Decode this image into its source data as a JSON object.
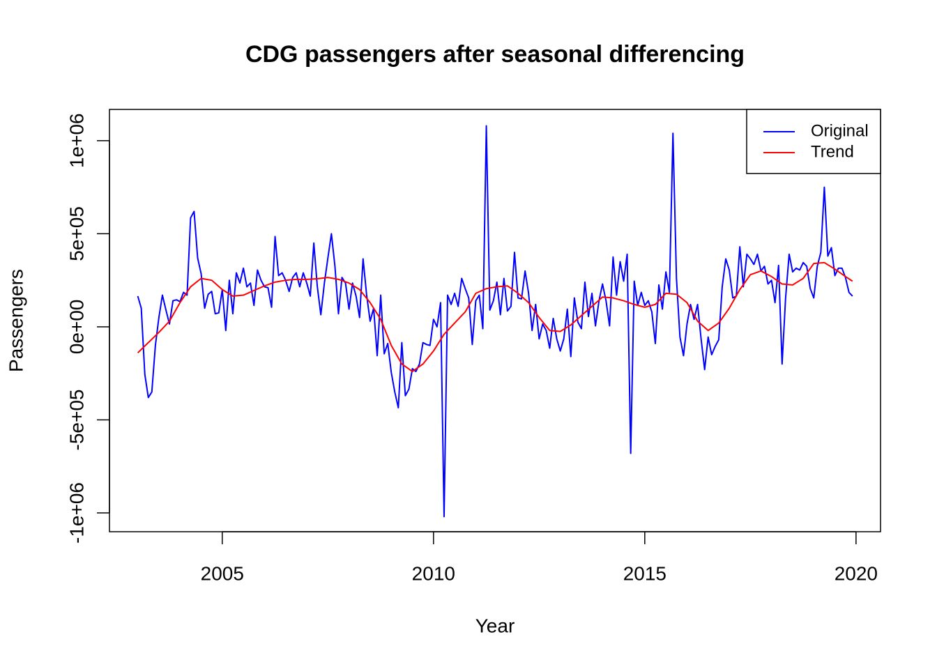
{
  "chart_data": {
    "type": "line",
    "title": "CDG passengers after seasonal differencing",
    "xlabel": "Year",
    "ylabel": "Passengers",
    "x": [
      2003.0,
      2003.083,
      2003.167,
      2003.25,
      2003.333,
      2003.417,
      2003.5,
      2003.583,
      2003.667,
      2003.75,
      2003.833,
      2003.917,
      2004.0,
      2004.083,
      2004.167,
      2004.25,
      2004.333,
      2004.417,
      2004.5,
      2004.583,
      2004.667,
      2004.75,
      2004.833,
      2004.917,
      2005.0,
      2005.083,
      2005.167,
      2005.25,
      2005.333,
      2005.417,
      2005.5,
      2005.583,
      2005.667,
      2005.75,
      2005.833,
      2005.917,
      2006.0,
      2006.083,
      2006.167,
      2006.25,
      2006.333,
      2006.417,
      2006.5,
      2006.583,
      2006.667,
      2006.75,
      2006.833,
      2006.917,
      2007.0,
      2007.083,
      2007.167,
      2007.25,
      2007.333,
      2007.417,
      2007.5,
      2007.583,
      2007.667,
      2007.75,
      2007.833,
      2007.917,
      2008.0,
      2008.083,
      2008.167,
      2008.25,
      2008.333,
      2008.417,
      2008.5,
      2008.583,
      2008.667,
      2008.75,
      2008.833,
      2008.917,
      2009.0,
      2009.083,
      2009.167,
      2009.25,
      2009.333,
      2009.417,
      2009.5,
      2009.583,
      2009.667,
      2009.75,
      2009.833,
      2009.917,
      2010.0,
      2010.083,
      2010.167,
      2010.25,
      2010.333,
      2010.417,
      2010.5,
      2010.583,
      2010.667,
      2010.75,
      2010.833,
      2010.917,
      2011.0,
      2011.083,
      2011.167,
      2011.25,
      2011.333,
      2011.417,
      2011.5,
      2011.583,
      2011.667,
      2011.75,
      2011.833,
      2011.917,
      2012.0,
      2012.083,
      2012.167,
      2012.25,
      2012.333,
      2012.417,
      2012.5,
      2012.583,
      2012.667,
      2012.75,
      2012.833,
      2012.917,
      2013.0,
      2013.083,
      2013.167,
      2013.25,
      2013.333,
      2013.417,
      2013.5,
      2013.583,
      2013.667,
      2013.75,
      2013.833,
      2013.917,
      2014.0,
      2014.083,
      2014.167,
      2014.25,
      2014.333,
      2014.417,
      2014.5,
      2014.583,
      2014.667,
      2014.75,
      2014.833,
      2014.917,
      2015.0,
      2015.083,
      2015.167,
      2015.25,
      2015.333,
      2015.417,
      2015.5,
      2015.583,
      2015.667,
      2015.75,
      2015.833,
      2015.917,
      2016.0,
      2016.083,
      2016.167,
      2016.25,
      2016.333,
      2016.417,
      2016.5,
      2016.583,
      2016.667,
      2016.75,
      2016.833,
      2016.917,
      2017.0,
      2017.083,
      2017.167,
      2017.25,
      2017.333,
      2017.417,
      2017.5,
      2017.583,
      2017.667,
      2017.75,
      2017.833,
      2017.917,
      2018.0,
      2018.083,
      2018.167,
      2018.25,
      2018.333,
      2018.417,
      2018.5,
      2018.583,
      2018.667,
      2018.75,
      2018.833,
      2018.917,
      2019.0,
      2019.083,
      2019.167,
      2019.25,
      2019.333,
      2019.417,
      2019.5,
      2019.583,
      2019.667,
      2019.75,
      2019.833,
      2019.917
    ],
    "series": [
      {
        "name": "Original",
        "color": "#0000ff",
        "values": [
          165000,
          100000,
          -255000,
          -380000,
          -350000,
          -100000,
          50000,
          170000,
          90000,
          15000,
          140000,
          145000,
          135000,
          185000,
          170000,
          585000,
          620000,
          370000,
          285000,
          100000,
          175000,
          190000,
          70000,
          75000,
          200000,
          -20000,
          250000,
          70000,
          290000,
          235000,
          315000,
          215000,
          235000,
          115000,
          305000,
          250000,
          215000,
          210000,
          105000,
          485000,
          275000,
          290000,
          250000,
          190000,
          265000,
          290000,
          215000,
          290000,
          235000,
          165000,
          450000,
          215000,
          65000,
          235000,
          370000,
          500000,
          325000,
          70000,
          265000,
          235000,
          95000,
          235000,
          165000,
          50000,
          365000,
          170000,
          30000,
          100000,
          -155000,
          170000,
          -145000,
          -90000,
          -245000,
          -350000,
          -435000,
          -85000,
          -370000,
          -335000,
          -225000,
          -240000,
          -200000,
          -85000,
          -95000,
          -100000,
          40000,
          0,
          130000,
          -1020000,
          170000,
          120000,
          180000,
          110000,
          260000,
          205000,
          155000,
          -95000,
          140000,
          170000,
          -10000,
          1080000,
          90000,
          140000,
          240000,
          65000,
          260000,
          85000,
          110000,
          400000,
          155000,
          150000,
          300000,
          180000,
          -20000,
          120000,
          -65000,
          15000,
          -20000,
          -115000,
          45000,
          -65000,
          -130000,
          -65000,
          95000,
          -160000,
          155000,
          25000,
          -10000,
          240000,
          55000,
          180000,
          5000,
          140000,
          230000,
          140000,
          5000,
          375000,
          170000,
          350000,
          245000,
          390000,
          -680000,
          245000,
          115000,
          185000,
          115000,
          140000,
          80000,
          -90000,
          225000,
          95000,
          295000,
          185000,
          1040000,
          260000,
          -55000,
          -155000,
          15000,
          120000,
          40000,
          120000,
          -65000,
          -230000,
          -55000,
          -150000,
          -105000,
          -70000,
          215000,
          365000,
          305000,
          155000,
          165000,
          430000,
          215000,
          390000,
          365000,
          335000,
          390000,
          300000,
          325000,
          230000,
          250000,
          130000,
          330000,
          -200000,
          155000,
          390000,
          295000,
          315000,
          305000,
          345000,
          325000,
          205000,
          155000,
          325000,
          400000,
          750000,
          380000,
          425000,
          275000,
          315000,
          315000,
          265000,
          185000,
          165000
        ]
      },
      {
        "name": "Trend",
        "color": "#ff0000",
        "x": [
          2003.0,
          2003.25,
          2003.5,
          2003.75,
          2004.0,
          2004.25,
          2004.5,
          2004.75,
          2005.0,
          2005.25,
          2005.5,
          2005.75,
          2006.0,
          2006.25,
          2006.5,
          2006.75,
          2007.0,
          2007.25,
          2007.5,
          2007.75,
          2008.0,
          2008.25,
          2008.5,
          2008.75,
          2009.0,
          2009.25,
          2009.5,
          2009.75,
          2010.0,
          2010.25,
          2010.5,
          2010.75,
          2011.0,
          2011.25,
          2011.5,
          2011.75,
          2012.0,
          2012.25,
          2012.5,
          2012.75,
          2013.0,
          2013.25,
          2013.5,
          2013.75,
          2014.0,
          2014.25,
          2014.5,
          2014.75,
          2015.0,
          2015.25,
          2015.5,
          2015.75,
          2016.0,
          2016.25,
          2016.5,
          2016.75,
          2017.0,
          2017.25,
          2017.5,
          2017.75,
          2018.0,
          2018.25,
          2018.5,
          2018.75,
          2019.0,
          2019.25,
          2019.5,
          2019.75,
          2019.917
        ],
        "values": [
          -140000,
          -85000,
          -30000,
          30000,
          130000,
          215000,
          260000,
          250000,
          200000,
          165000,
          170000,
          195000,
          220000,
          240000,
          250000,
          255000,
          255000,
          258000,
          265000,
          255000,
          235000,
          200000,
          130000,
          40000,
          -100000,
          -200000,
          -240000,
          -200000,
          -130000,
          -40000,
          20000,
          80000,
          180000,
          205000,
          215000,
          220000,
          180000,
          130000,
          50000,
          -20000,
          -25000,
          10000,
          60000,
          110000,
          160000,
          155000,
          140000,
          120000,
          105000,
          120000,
          180000,
          175000,
          130000,
          30000,
          -20000,
          20000,
          100000,
          200000,
          280000,
          300000,
          270000,
          230000,
          225000,
          260000,
          340000,
          345000,
          310000,
          270000,
          245000
        ]
      }
    ],
    "xlim": [
      2002.33,
      2020.58
    ],
    "ylim": [
      -1101000,
      1168000
    ],
    "xticks": [
      2005,
      2010,
      2015,
      2020
    ],
    "yticks": [
      {
        "value": -1000000,
        "label": "-1e+06"
      },
      {
        "value": -500000,
        "label": "-5e+05"
      },
      {
        "value": 0,
        "label": "0e+00"
      },
      {
        "value": 500000,
        "label": "5e+05"
      },
      {
        "value": 1000000,
        "label": "1e+06"
      }
    ],
    "legend": "top-right",
    "grid": false
  }
}
